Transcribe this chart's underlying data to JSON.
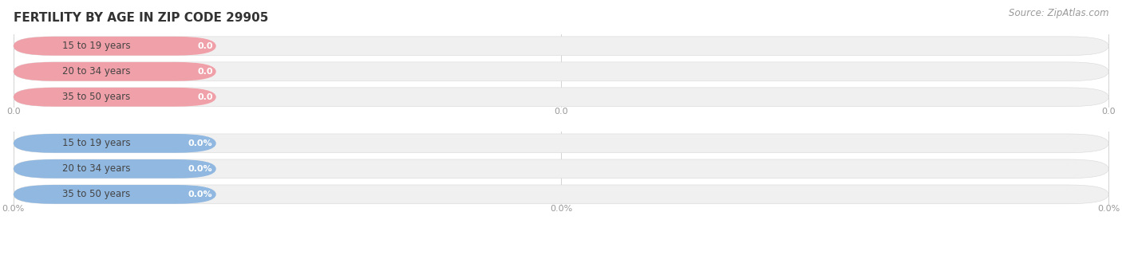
{
  "title": "FERTILITY BY AGE IN ZIP CODE 29905",
  "source": "Source: ZipAtlas.com",
  "top_group": {
    "labels": [
      "15 to 19 years",
      "20 to 34 years",
      "35 to 50 years"
    ],
    "value_labels": [
      "0.0",
      "0.0",
      "0.0"
    ],
    "bar_color": "#f0a0a8",
    "bar_bg_color": "#f0f0f0",
    "label_color": "#444444",
    "value_text_color": "#ffffff",
    "axis_ticks": [
      "0.0",
      "0.0",
      "0.0"
    ]
  },
  "bottom_group": {
    "labels": [
      "15 to 19 years",
      "20 to 34 years",
      "35 to 50 years"
    ],
    "value_labels": [
      "0.0%",
      "0.0%",
      "0.0%"
    ],
    "bar_color": "#90b8e0",
    "bar_bg_color": "#f0f0f0",
    "label_color": "#444444",
    "value_text_color": "#ffffff",
    "axis_ticks": [
      "0.0%",
      "0.0%",
      "0.0%"
    ]
  },
  "background_color": "#ffffff",
  "title_fontsize": 11,
  "label_fontsize": 8.5,
  "value_fontsize": 8,
  "source_fontsize": 8.5,
  "fig_width": 14.06,
  "fig_height": 3.3
}
